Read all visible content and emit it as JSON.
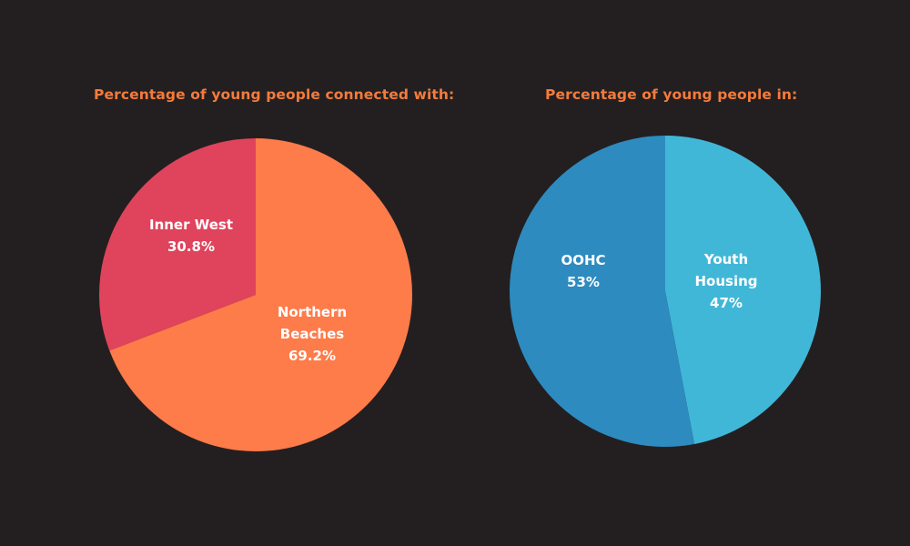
{
  "chart_data": [
    {
      "type": "pie",
      "title": "Percentage of young people connected with:",
      "slices": [
        {
          "label_lines": [
            "Inner West",
            "30.8%"
          ],
          "name": "Inner West",
          "value": 30.8,
          "color": "#e0435c"
        },
        {
          "label_lines": [
            "Northern",
            "Beaches",
            "69.2%"
          ],
          "name": "Northern Beaches",
          "value": 69.2,
          "color": "#fe7b4a"
        }
      ]
    },
    {
      "type": "pie",
      "title": "Percentage of young people in:",
      "slices": [
        {
          "label_lines": [
            "Youth",
            "Housing",
            "47%"
          ],
          "name": "Youth Housing",
          "value": 47,
          "color": "#41b7d8"
        },
        {
          "label_lines": [
            "OOHC",
            "53%"
          ],
          "name": "OOHC",
          "value": 53,
          "color": "#2d8bbf"
        }
      ]
    }
  ],
  "background": "#231f20",
  "title_color": "#f47b3c"
}
